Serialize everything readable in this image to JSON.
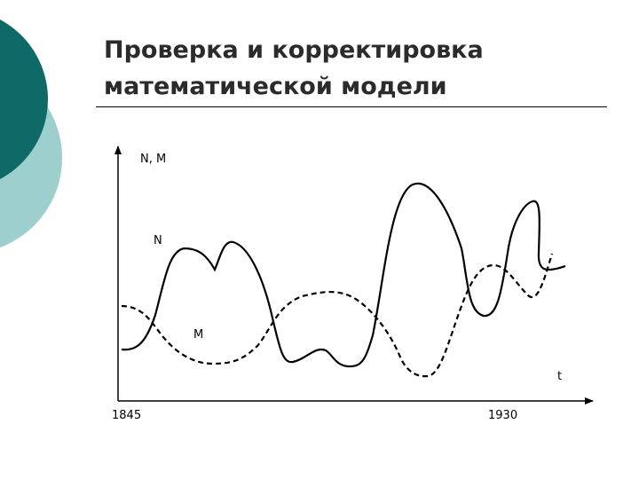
{
  "slide": {
    "title_line1": "Проверка и корректировка",
    "title_line2": "математической модели"
  },
  "graph": {
    "y_axis_label": "N, M",
    "x_axis_label": "t",
    "curve_n_label": "N",
    "curve_m_label": "M",
    "x_start_label": "1845",
    "x_end_label": "1930",
    "colors": {
      "deco_dark": "#0e6a66",
      "deco_light": "#9ccfcd",
      "line": "#000000"
    }
  }
}
